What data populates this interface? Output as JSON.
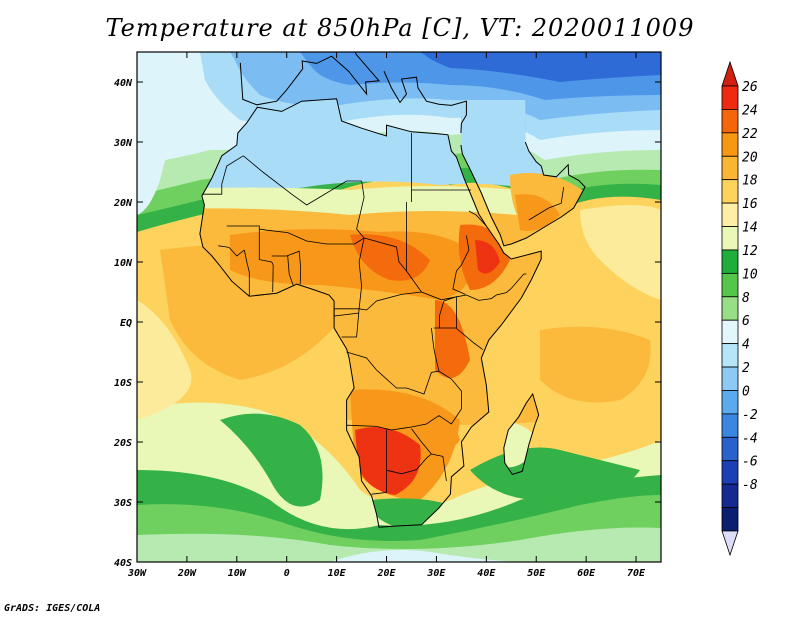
{
  "title": "Temperature at 850hPa [C], VT: 2020011009",
  "credit": "GrADS: IGES/COLA",
  "map": {
    "lon_range": [
      -30,
      75
    ],
    "lat_range": [
      -40,
      45
    ],
    "x_ticks": [
      {
        "lon": -30,
        "label": "30W"
      },
      {
        "lon": -20,
        "label": "20W"
      },
      {
        "lon": -10,
        "label": "10W"
      },
      {
        "lon": 0,
        "label": "0"
      },
      {
        "lon": 10,
        "label": "10E"
      },
      {
        "lon": 20,
        "label": "20E"
      },
      {
        "lon": 30,
        "label": "30E"
      },
      {
        "lon": 40,
        "label": "40E"
      },
      {
        "lon": 50,
        "label": "50E"
      },
      {
        "lon": 60,
        "label": "60E"
      },
      {
        "lon": 70,
        "label": "70E"
      }
    ],
    "y_ticks": [
      {
        "lat": 40,
        "label": "40N"
      },
      {
        "lat": 30,
        "label": "30N"
      },
      {
        "lat": 20,
        "label": "20N"
      },
      {
        "lat": 10,
        "label": "10N"
      },
      {
        "lat": 0,
        "label": "EQ"
      },
      {
        "lat": -10,
        "label": "10S"
      },
      {
        "lat": -20,
        "label": "20S"
      },
      {
        "lat": -30,
        "label": "30S"
      },
      {
        "lat": -40,
        "label": "40S"
      }
    ]
  },
  "colorbar": {
    "labels": [
      "26",
      "24",
      "22",
      "20",
      "18",
      "16",
      "14",
      "12",
      "10",
      "8",
      "6",
      "4",
      "2",
      "0",
      "-2",
      "-4",
      "-6",
      "-8"
    ],
    "colors": [
      "#f02a10",
      "#f5660a",
      "#f89812",
      "#fbb535",
      "#fdd35b",
      "#fdf0a5",
      "#e9f7b7",
      "#1fae3b",
      "#55c64c",
      "#98de86",
      "#e2f7fb",
      "#b5e6f8",
      "#8ccaf5",
      "#5ba9ee",
      "#3a86e0",
      "#2a62cc",
      "#1d3fb4",
      "#142a90",
      "#0a1f70"
    ],
    "top_arrow": "#d12010",
    "bottom_arrow": "#dcdcf6"
  },
  "field": {
    "colors": {
      "t26": "#ee3313",
      "t24": "#f46b0d",
      "t22": "#f8981a",
      "t20": "#fbba3c",
      "t18": "#fdd35e",
      "t16": "#fdeb9c",
      "t14": "#e9f7b7",
      "t12": "#34b247",
      "t10": "#6fd060",
      "t8": "#b6eab0",
      "t6": "#def4fb",
      "t4": "#a8dcf7",
      "t2": "#7bbcf2",
      "t0": "#4e96e8",
      "tm4": "#2e6bd6",
      "tm8": "#1a3fb4"
    }
  }
}
